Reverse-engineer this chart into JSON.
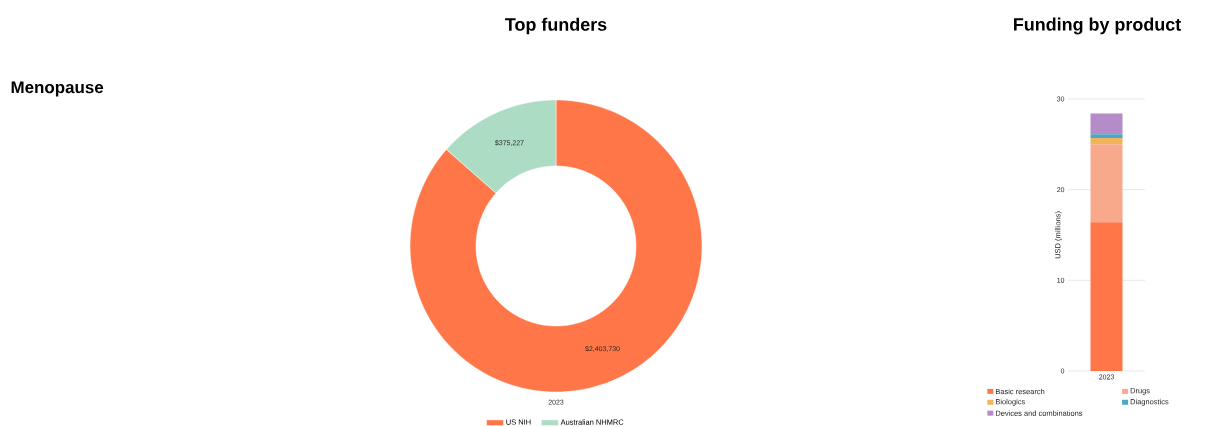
{
  "chart_data": [
    {
      "type": "donut",
      "title": "Top funders",
      "annotations": [
        "Menopause"
      ],
      "xlabel": "2023",
      "categories": [
        "US NIH",
        "Australian NHMRC"
      ],
      "values": [
        2403730,
        375227
      ],
      "value_labels": [
        "$2,403,730",
        "$375,227"
      ],
      "colors": [
        "#ff7748",
        "#acdcc4"
      ],
      "legend": "bottom"
    },
    {
      "type": "bar",
      "title": "Funding by product",
      "stacked": true,
      "categories": [
        "2023"
      ],
      "ylabel": "USD (millions)",
      "ylim": [
        0,
        30
      ],
      "yticks": [
        0,
        10,
        20,
        30
      ],
      "grid": "y",
      "legend": "bottom",
      "series": [
        {
          "name": "Basic research",
          "color": "#ff7748",
          "values": [
            16.4
          ]
        },
        {
          "name": "Drugs",
          "color": "#f8a98c",
          "values": [
            8.6
          ]
        },
        {
          "name": "Biologics",
          "color": "#f0b45a",
          "values": [
            0.7
          ]
        },
        {
          "name": "Diagnostics",
          "color": "#4ba8c8",
          "values": [
            0.4
          ]
        },
        {
          "name": "Devices and combinations",
          "color": "#b48cc8",
          "values": [
            2.3
          ]
        }
      ]
    }
  ]
}
